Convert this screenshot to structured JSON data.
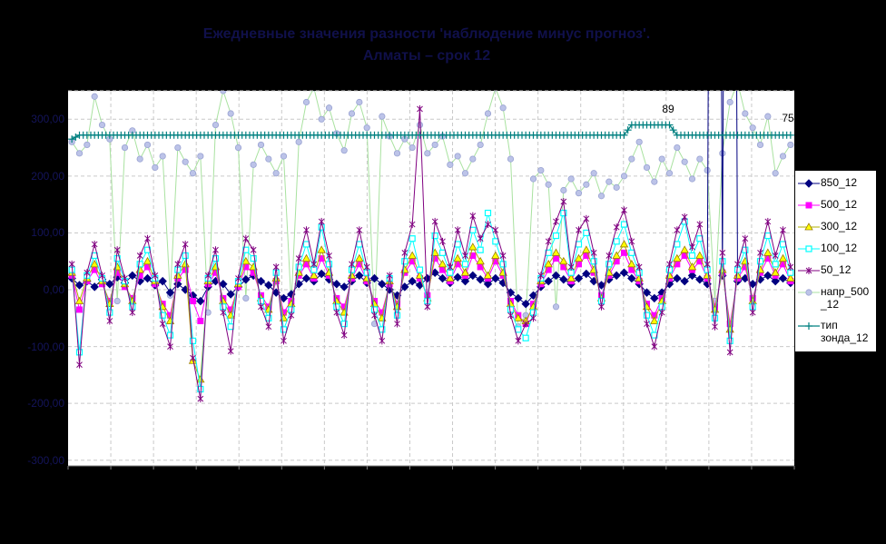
{
  "title": {
    "line1": "Ежедневные значения разности 'наблюдение минус прогноз'.",
    "line2": "Алматы – срок 12",
    "color": "#10104a"
  },
  "colors": {
    "chart_background": "#000000",
    "plot_background": "#ffffff",
    "gridline": "#c9c9c9",
    "axis_line": "#808080",
    "axis_label": "#14145a",
    "annotation_text": "#000000",
    "legend_background": "#ffffff",
    "legend_border": "#000000"
  },
  "chart_data": {
    "type": "line",
    "title": "Ежедневные значения разности 'наблюдение минус прогноз'. Алматы – срок 12",
    "xlabel": "",
    "ylabel": "",
    "x_labels_visible": false,
    "n_points": 96,
    "x_gridline_intervals": 17,
    "y_axis": {
      "min": -310,
      "max": 350,
      "tick_values": [
        300,
        200,
        100,
        0,
        -100,
        -200,
        -300
      ],
      "tick_labels": [
        "300,00",
        "200,00",
        "100,00",
        "0,00",
        "-100,00",
        "-200,00",
        "-300,00"
      ],
      "extra_gridlines": [
        350
      ]
    },
    "series": [
      {
        "name": "850_12",
        "line_color": "#000080",
        "line_width": 1,
        "marker": "diamond",
        "marker_fill": "#000080",
        "marker_stroke": "#000080",
        "values": [
          20,
          8,
          15,
          5,
          18,
          10,
          22,
          12,
          25,
          15,
          20,
          8,
          15,
          -5,
          10,
          0,
          -10,
          -20,
          5,
          15,
          10,
          -8,
          5,
          18,
          25,
          15,
          8,
          -5,
          -15,
          -8,
          10,
          20,
          15,
          28,
          18,
          10,
          5,
          15,
          25,
          12,
          20,
          10,
          0,
          -10,
          5,
          15,
          8,
          20,
          30,
          20,
          12,
          22,
          15,
          25,
          18,
          10,
          20,
          12,
          -5,
          -15,
          -25,
          -10,
          5,
          15,
          25,
          18,
          10,
          20,
          28,
          15,
          8,
          18,
          25,
          30,
          20,
          10,
          -5,
          -15,
          -5,
          10,
          20,
          15,
          25,
          18,
          10,
          3000,
          25,
          3000,
          15,
          20,
          10,
          18,
          25,
          15,
          20,
          12
        ]
      },
      {
        "name": "500_12",
        "line_color": "#ff00ff",
        "line_width": 1,
        "marker": "square",
        "marker_fill": "#ff00ff",
        "marker_stroke": "#ff00ff",
        "values": [
          25,
          -35,
          15,
          35,
          10,
          -20,
          30,
          5,
          -15,
          25,
          40,
          10,
          -25,
          -45,
          20,
          35,
          -20,
          -55,
          10,
          30,
          -15,
          -35,
          5,
          40,
          30,
          -10,
          -30,
          15,
          -40,
          -20,
          25,
          45,
          20,
          55,
          25,
          -15,
          -30,
          20,
          45,
          15,
          -20,
          -40,
          10,
          -25,
          30,
          50,
          20,
          -10,
          55,
          35,
          15,
          45,
          25,
          60,
          40,
          20,
          50,
          25,
          -20,
          -45,
          -60,
          -25,
          10,
          35,
          55,
          40,
          15,
          45,
          60,
          30,
          -10,
          25,
          50,
          65,
          35,
          15,
          -25,
          -45,
          -15,
          20,
          45,
          60,
          35,
          50,
          20,
          -30,
          30,
          -60,
          20,
          40,
          -15,
          30,
          55,
          25,
          45,
          15
        ]
      },
      {
        "name": "300_12",
        "line_color": "#b0b000",
        "line_width": 1,
        "marker": "triangle",
        "marker_fill": "#ffff00",
        "marker_stroke": "#997a00",
        "values": [
          30,
          -20,
          20,
          45,
          15,
          -25,
          40,
          10,
          -20,
          35,
          50,
          15,
          -30,
          -55,
          25,
          45,
          -125,
          -158,
          15,
          40,
          -20,
          -45,
          10,
          50,
          40,
          -15,
          -35,
          20,
          -50,
          -25,
          30,
          55,
          25,
          70,
          30,
          -20,
          -40,
          25,
          55,
          20,
          -25,
          -50,
          15,
          -30,
          35,
          60,
          25,
          -15,
          65,
          45,
          20,
          55,
          30,
          75,
          50,
          25,
          60,
          30,
          -25,
          -50,
          -55,
          -30,
          15,
          45,
          65,
          50,
          20,
          55,
          70,
          35,
          -15,
          30,
          60,
          80,
          45,
          20,
          -30,
          -55,
          -20,
          25,
          55,
          70,
          40,
          60,
          25,
          -35,
          35,
          -70,
          25,
          50,
          -20,
          35,
          65,
          30,
          55,
          20
        ]
      },
      {
        "name": "100_12",
        "line_color": "#00ffff",
        "line_width": 1,
        "marker": "square_open",
        "marker_fill": "#ffffff",
        "marker_stroke": "#00ffff",
        "values": [
          35,
          -110,
          25,
          60,
          20,
          -40,
          55,
          15,
          -30,
          45,
          70,
          20,
          -45,
          -80,
          35,
          60,
          -90,
          -175,
          20,
          55,
          -30,
          -65,
          15,
          70,
          55,
          -20,
          -50,
          30,
          -70,
          -35,
          40,
          80,
          35,
          110,
          45,
          -30,
          -60,
          35,
          80,
          30,
          -35,
          -70,
          20,
          -45,
          50,
          90,
          35,
          -20,
          95,
          65,
          30,
          80,
          45,
          105,
          70,
          135,
          85,
          45,
          -35,
          -70,
          -85,
          -40,
          20,
          65,
          95,
          135,
          30,
          80,
          100,
          50,
          -20,
          45,
          85,
          115,
          65,
          30,
          -45,
          -80,
          -30,
          35,
          80,
          120,
          60,
          90,
          35,
          -50,
          50,
          -90,
          35,
          70,
          -30,
          50,
          95,
          45,
          80,
          30
        ]
      },
      {
        "name": "50_12",
        "line_color": "#800080",
        "line_width": 1,
        "marker": "asterisk",
        "marker_fill": "none",
        "marker_stroke": "#800080",
        "values": [
          45,
          -132,
          30,
          80,
          25,
          -55,
          70,
          20,
          -40,
          60,
          90,
          25,
          -60,
          -100,
          45,
          80,
          -120,
          -192,
          25,
          70,
          -40,
          -108,
          20,
          90,
          70,
          -30,
          -65,
          40,
          -90,
          -45,
          55,
          105,
          45,
          120,
          60,
          -40,
          -80,
          45,
          105,
          40,
          -45,
          -90,
          25,
          -60,
          65,
          115,
          318,
          -30,
          120,
          85,
          40,
          105,
          60,
          130,
          90,
          115,
          105,
          60,
          -45,
          -90,
          -60,
          -50,
          25,
          85,
          120,
          155,
          40,
          105,
          125,
          65,
          -30,
          60,
          110,
          140,
          85,
          40,
          -60,
          -100,
          -40,
          45,
          105,
          128,
          75,
          115,
          45,
          -65,
          65,
          -110,
          45,
          90,
          -40,
          65,
          120,
          60,
          105,
          40
        ]
      },
      {
        "name": "напр_500_12",
        "line_color": "#a9e2a0",
        "line_width": 1,
        "marker": "circle",
        "marker_fill": "#bcc3e8",
        "marker_stroke": "#9aa3d2",
        "values": [
          260,
          240,
          255,
          340,
          290,
          265,
          -20,
          250,
          280,
          230,
          255,
          215,
          235,
          -10,
          250,
          225,
          205,
          235,
          -40,
          290,
          350,
          310,
          250,
          -15,
          220,
          255,
          230,
          205,
          235,
          -25,
          260,
          330,
          355,
          300,
          320,
          275,
          245,
          310,
          330,
          285,
          -60,
          305,
          270,
          240,
          265,
          250,
          290,
          240,
          255,
          270,
          220,
          235,
          205,
          230,
          255,
          310,
          355,
          320,
          230,
          -65,
          -45,
          195,
          210,
          185,
          -30,
          175,
          195,
          170,
          185,
          205,
          165,
          190,
          180,
          200,
          230,
          260,
          215,
          190,
          230,
          205,
          250,
          225,
          195,
          230,
          210,
          -20,
          240,
          330,
          365,
          310,
          285,
          255,
          305,
          205,
          235,
          255
        ]
      },
      {
        "name": "тип зонда_12",
        "line_color": "#008080",
        "line_width": 1.3,
        "marker": "plus",
        "marker_fill": "none",
        "marker_stroke": "#008080",
        "dense_markers": true,
        "values": [
          265,
          272,
          272,
          272,
          272,
          272,
          272,
          272,
          272,
          272,
          272,
          272,
          272,
          272,
          272,
          272,
          272,
          272,
          272,
          272,
          272,
          272,
          272,
          272,
          272,
          272,
          272,
          272,
          272,
          272,
          272,
          272,
          272,
          272,
          272,
          272,
          272,
          272,
          272,
          272,
          272,
          272,
          272,
          272,
          272,
          272,
          272,
          272,
          272,
          272,
          272,
          272,
          272,
          272,
          272,
          272,
          272,
          272,
          272,
          272,
          272,
          272,
          272,
          272,
          272,
          272,
          272,
          272,
          272,
          272,
          272,
          272,
          272,
          272,
          290,
          290,
          290,
          290,
          290,
          290,
          272,
          272,
          272,
          272,
          272,
          272,
          272,
          272,
          272,
          272,
          272,
          272,
          272,
          272,
          272,
          272
        ]
      }
    ],
    "point_labels": [
      {
        "text": "89",
        "x": 736,
        "y": 120
      },
      {
        "text": "75",
        "x": 868,
        "y": 130
      }
    ],
    "legend_position": "right"
  },
  "legend": {
    "items": [
      {
        "label_lines": [
          "850_12"
        ],
        "series_index": 0
      },
      {
        "label_lines": [
          "500_12"
        ],
        "series_index": 1
      },
      {
        "label_lines": [
          "300_12"
        ],
        "series_index": 2
      },
      {
        "label_lines": [
          "100_12"
        ],
        "series_index": 3
      },
      {
        "label_lines": [
          "50_12"
        ],
        "series_index": 4
      },
      {
        "label_lines": [
          "напр_500",
          "_12"
        ],
        "series_index": 5
      },
      {
        "label_lines": [
          "тип",
          "зонда_12"
        ],
        "series_index": 6
      }
    ]
  }
}
